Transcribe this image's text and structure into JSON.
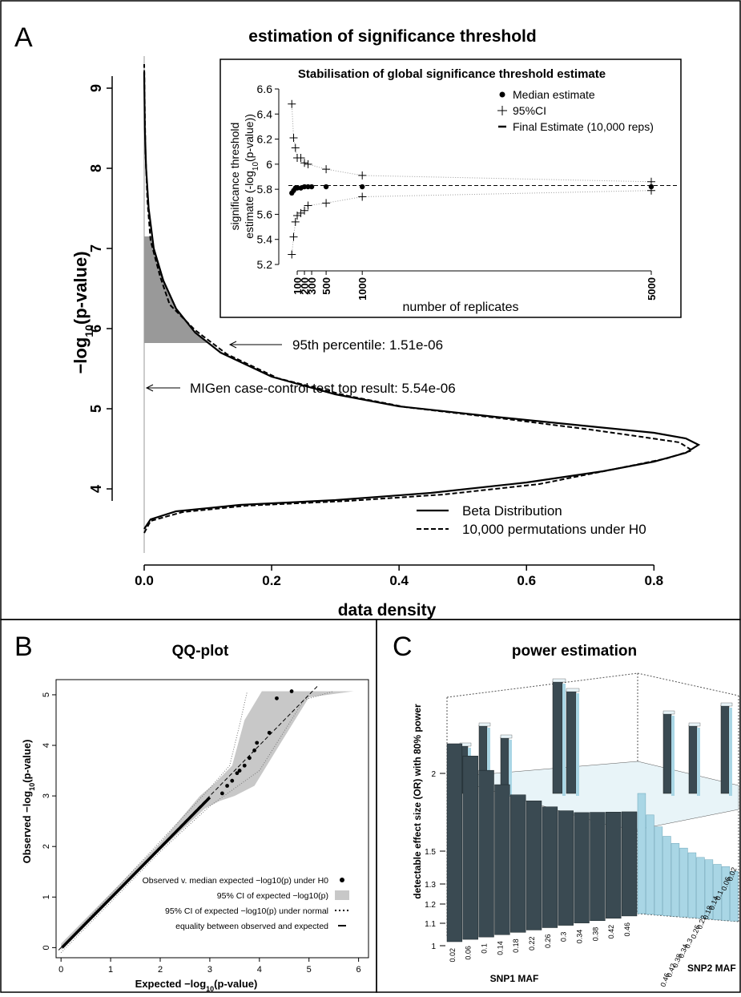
{
  "panel_letters": {
    "a": "A",
    "b": "B",
    "c": "C"
  },
  "chart_data": [
    {
      "panel": "A",
      "type": "line",
      "orientation": "density vs -log10(p)",
      "title": "estimation of significance threshold",
      "xlabel": "data density",
      "ylabel_main": "−log",
      "ylabel_sub": "10",
      "ylabel_tail": "(p-value)",
      "xlim": [
        0,
        0.87
      ],
      "ylim": [
        3.3,
        9.3
      ],
      "x_ticks": [
        0.0,
        0.2,
        0.4,
        0.6,
        0.8
      ],
      "x_tick_labels": [
        "0.0",
        "0.2",
        "0.4",
        "0.6",
        "0.8"
      ],
      "y_ticks": [
        4,
        5,
        6,
        7,
        8,
        9
      ],
      "y_tick_labels": [
        "4",
        "5",
        "6",
        "7",
        "8",
        "9"
      ],
      "series": [
        {
          "name": "Beta Distribution",
          "style": "solid",
          "points": [
            [
              0.0,
              3.5
            ],
            [
              0.01,
              3.62
            ],
            [
              0.05,
              3.72
            ],
            [
              0.15,
              3.8
            ],
            [
              0.3,
              3.86
            ],
            [
              0.45,
              3.95
            ],
            [
              0.6,
              4.08
            ],
            [
              0.72,
              4.22
            ],
            [
              0.8,
              4.34
            ],
            [
              0.85,
              4.45
            ],
            [
              0.87,
              4.55
            ],
            [
              0.85,
              4.63
            ],
            [
              0.8,
              4.7
            ],
            [
              0.7,
              4.78
            ],
            [
              0.55,
              4.9
            ],
            [
              0.4,
              5.03
            ],
            [
              0.3,
              5.18
            ],
            [
              0.2,
              5.4
            ],
            [
              0.12,
              5.7
            ],
            [
              0.08,
              5.95
            ],
            [
              0.05,
              6.25
            ],
            [
              0.03,
              6.6
            ],
            [
              0.015,
              7.0
            ],
            [
              0.007,
              7.5
            ],
            [
              0.003,
              8.0
            ],
            [
              0.001,
              8.5
            ],
            [
              0.0,
              9.2
            ]
          ]
        },
        {
          "name": "10,000 permutations under H0",
          "style": "dashed",
          "points": [
            [
              0.0,
              3.45
            ],
            [
              0.01,
              3.6
            ],
            [
              0.06,
              3.71
            ],
            [
              0.16,
              3.79
            ],
            [
              0.32,
              3.85
            ],
            [
              0.47,
              3.93
            ],
            [
              0.62,
              4.06
            ],
            [
              0.74,
              4.25
            ],
            [
              0.82,
              4.38
            ],
            [
              0.86,
              4.48
            ],
            [
              0.84,
              4.58
            ],
            [
              0.78,
              4.65
            ],
            [
              0.7,
              4.74
            ],
            [
              0.56,
              4.88
            ],
            [
              0.41,
              5.02
            ],
            [
              0.32,
              5.16
            ],
            [
              0.21,
              5.38
            ],
            [
              0.13,
              5.68
            ],
            [
              0.08,
              5.98
            ],
            [
              0.04,
              6.3
            ],
            [
              0.025,
              6.65
            ],
            [
              0.01,
              7.1
            ],
            [
              0.005,
              7.6
            ],
            [
              0.002,
              8.2
            ],
            [
              0.001,
              8.7
            ],
            [
              0.0,
              9.3
            ]
          ]
        }
      ],
      "shaded_region": {
        "from_y": 5.82,
        "to_y": 7.15
      },
      "annotations": [
        {
          "text": "95th percentile: 1.51e-06",
          "y": 5.82
        },
        {
          "text": "MIGen case-control test top result: 5.54e-06",
          "y": 5.26
        }
      ],
      "legend": {
        "position": "bottom-right",
        "items": [
          "Beta Distribution",
          "10,000 permutations under H0"
        ]
      },
      "inset": {
        "type": "scatter",
        "title": "Stabilisation of global significance threshold estimate",
        "xlabel": "number of replicates",
        "ylabel_line1": "significance threshold",
        "ylabel_line2_pre": "estimate (-log",
        "ylabel_line2_sub": "10",
        "ylabel_line2_post": "(p-value))",
        "ylim": [
          5.2,
          6.6
        ],
        "xlim": [
          0,
          5100
        ],
        "y_ticks": [
          5.2,
          5.4,
          5.6,
          5.8,
          6.0,
          6.2,
          6.4,
          6.6
        ],
        "y_tick_labels": [
          "5.2",
          "5.4",
          "5.6",
          "5.8",
          "6",
          "6.2",
          "6.4",
          "6.6"
        ],
        "x_ticks": [
          100,
          200,
          300,
          500,
          1000,
          5000
        ],
        "x_tick_labels": [
          "100",
          "200",
          "300",
          "500",
          "1000",
          "5000"
        ],
        "final_estimate": 5.83,
        "median_points": [
          [
            25,
            5.77
          ],
          [
            50,
            5.79
          ],
          [
            75,
            5.81
          ],
          [
            100,
            5.81
          ],
          [
            150,
            5.81
          ],
          [
            200,
            5.82
          ],
          [
            250,
            5.82
          ],
          [
            300,
            5.82
          ],
          [
            500,
            5.82
          ],
          [
            1000,
            5.82
          ],
          [
            5000,
            5.82
          ]
        ],
        "ci_upper": [
          [
            25,
            6.48
          ],
          [
            50,
            6.21
          ],
          [
            75,
            6.13
          ],
          [
            100,
            6.05
          ],
          [
            150,
            6.05
          ],
          [
            200,
            6.01
          ],
          [
            250,
            6.0
          ],
          [
            500,
            5.96
          ],
          [
            1000,
            5.91
          ],
          [
            5000,
            5.86
          ]
        ],
        "ci_lower": [
          [
            25,
            5.28
          ],
          [
            50,
            5.42
          ],
          [
            75,
            5.54
          ],
          [
            100,
            5.59
          ],
          [
            150,
            5.61
          ],
          [
            200,
            5.63
          ],
          [
            250,
            5.67
          ],
          [
            500,
            5.69
          ],
          [
            1000,
            5.74
          ],
          [
            5000,
            5.79
          ]
        ],
        "legend": {
          "position": "top-right",
          "items": [
            "Median estimate",
            "95%CI",
            "Final Estimate (10,000 reps)"
          ]
        }
      }
    },
    {
      "panel": "B",
      "type": "scatter",
      "title": "QQ-plot",
      "xlabel": "Expected −log",
      "xlabel_sub": "10",
      "xlabel_tail": "(p-value)",
      "ylabel": "Observed −log",
      "ylabel_sub": "10",
      "ylabel_tail": "(p-value)",
      "xlim": [
        -0.1,
        6.2
      ],
      "ylim": [
        -0.2,
        5.3
      ],
      "x_ticks": [
        0,
        1,
        2,
        3,
        4,
        5,
        6
      ],
      "x_tick_labels": [
        "0",
        "1",
        "2",
        "3",
        "4",
        "5",
        "6"
      ],
      "y_ticks": [
        0,
        1,
        2,
        3,
        4,
        5
      ],
      "y_tick_labels": [
        "0",
        "1",
        "2",
        "3",
        "4",
        "5"
      ],
      "points": [
        [
          3.25,
          3.05
        ],
        [
          3.35,
          3.2
        ],
        [
          3.45,
          3.3
        ],
        [
          3.55,
          3.45
        ],
        [
          3.6,
          3.5
        ],
        [
          3.7,
          3.6
        ],
        [
          3.8,
          3.75
        ],
        [
          3.9,
          3.9
        ],
        [
          3.95,
          4.05
        ],
        [
          4.2,
          4.25
        ],
        [
          4.35,
          4.93
        ],
        [
          4.65,
          5.07
        ]
      ],
      "legend": {
        "position": "bottom-right",
        "items": [
          "Observed v. median expected −log10(p) under H0",
          "95% CI of expected −log10(p)",
          "95% CI of expected −log10(p) under normal",
          "equality between observed and expected"
        ]
      }
    },
    {
      "panel": "C",
      "type": "bar",
      "chart_kind": "3d-bar",
      "title": "power estimation",
      "xlabel": "SNP1 MAF",
      "ylabel": "SNP2 MAF",
      "zlabel": "detectable effect size (OR) with 80% power",
      "x_tick_labels": [
        "0.02",
        "0.06",
        "0.1",
        "0.14",
        "0.18",
        "0.22",
        "0.26",
        "0.3",
        "0.34",
        "0.38",
        "0.42",
        "0.46"
      ],
      "y_tick_labels": [
        "0.02",
        "0.06",
        "0.1",
        "0.14",
        "0.18",
        "0.22",
        "0.26",
        "0.3",
        "0.34",
        "0.38",
        "0.42",
        "0.46"
      ],
      "z_ticks": [
        1,
        1.1,
        1.2,
        1.3,
        1.5,
        2
      ],
      "z_tick_labels": [
        "1",
        "1.1",
        "1.2",
        "1.3",
        "1.5",
        "2"
      ],
      "front_row_values": [
        1.95,
        1.88,
        1.8,
        1.72,
        1.66,
        1.62,
        1.58,
        1.55,
        1.53,
        1.52,
        1.51,
        1.5
      ],
      "right_col_values": [
        1.5,
        1.42,
        1.38,
        1.35,
        1.33,
        1.32,
        1.31,
        1.3,
        1.3,
        1.29,
        1.29,
        1.28
      ]
    }
  ],
  "colors": {
    "shade": "#999999",
    "ci_band": "#c8c8c8",
    "bar_front": "#3a4a52",
    "bar_side": "#a9d6e5",
    "bar_top": "#e8f4f8"
  }
}
